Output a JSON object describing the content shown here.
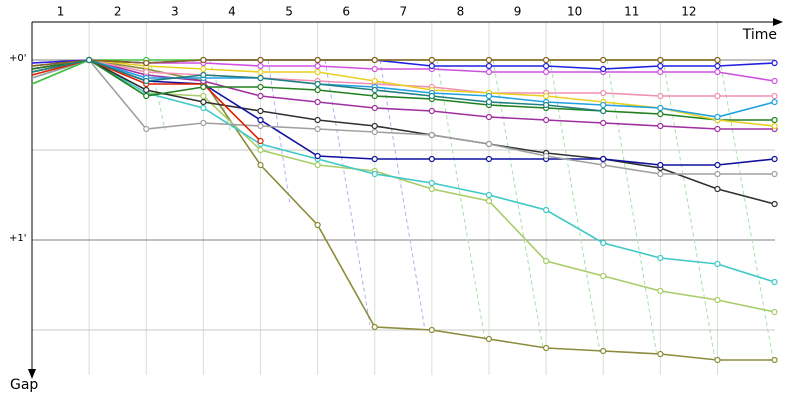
{
  "chart_data": {
    "type": "line",
    "x_label": "Time",
    "y_label": "Gap",
    "x": [
      0,
      1,
      2,
      3,
      4,
      5,
      6,
      7,
      8,
      9,
      10,
      11,
      12,
      13
    ],
    "xlim": [
      0,
      13.2
    ],
    "xticks": [
      {
        "value": 0.5,
        "label": "1"
      },
      {
        "value": 1.5,
        "label": "2"
      },
      {
        "value": 2.5,
        "label": "3"
      },
      {
        "value": 3.5,
        "label": "4"
      },
      {
        "value": 4.5,
        "label": "5"
      },
      {
        "value": 5.5,
        "label": "6"
      },
      {
        "value": 6.5,
        "label": "7"
      },
      {
        "value": 7.5,
        "label": "8"
      },
      {
        "value": 8.5,
        "label": "9"
      },
      {
        "value": 9.5,
        "label": "10"
      },
      {
        "value": 10.5,
        "label": "11"
      },
      {
        "value": 11.5,
        "label": "12"
      }
    ],
    "xgrid": [
      1,
      2,
      3,
      4,
      5,
      6,
      7,
      8,
      9,
      10,
      11,
      12
    ],
    "ylim": [
      -13,
      105
    ],
    "yticks": [
      {
        "value": 0,
        "label": "+0'"
      },
      {
        "value": 60,
        "label": "+1'"
      }
    ],
    "yminor": [
      30,
      90
    ],
    "inverted_y": true,
    "series": [
      {
        "color": "#8b8b3a",
        "values": [
          4,
          0,
          3,
          7,
          35,
          55,
          89,
          90,
          93,
          96,
          97,
          98,
          100,
          100
        ]
      },
      {
        "color": "#a8cc68",
        "values": [
          8,
          0,
          11,
          12,
          30,
          35,
          37,
          43,
          47,
          67,
          72,
          77,
          80,
          84
        ]
      },
      {
        "color": "#40c8c8",
        "values": [
          6,
          0,
          11,
          16,
          28,
          33,
          38,
          41,
          45,
          50,
          61,
          66,
          68,
          74
        ]
      },
      {
        "color": "#303030",
        "values": [
          4,
          0,
          10,
          14,
          17,
          20,
          22,
          25,
          28,
          31,
          33,
          36,
          43,
          48
        ]
      },
      {
        "color": "#1010a0",
        "values": [
          3,
          0,
          7,
          8,
          20,
          32,
          33,
          33,
          33,
          33,
          33,
          35,
          35,
          33
        ]
      },
      {
        "color": "#a0a0a0",
        "values": [
          6,
          0,
          23,
          21,
          22,
          23,
          24,
          25,
          28,
          32,
          35,
          38,
          38,
          38
        ]
      },
      {
        "color": "#e02000",
        "values": [
          5,
          0,
          8,
          8,
          27,
          null,
          null,
          null,
          null,
          null,
          null,
          null,
          null,
          null
        ]
      },
      {
        "color": "#a030a0",
        "values": [
          3,
          0,
          5,
          7,
          12,
          14,
          16,
          17,
          19,
          20,
          21,
          22,
          23,
          23
        ]
      },
      {
        "color": "#208020",
        "values": [
          3,
          0,
          12,
          9,
          9,
          10,
          12,
          13,
          15,
          16,
          17,
          18,
          20,
          20
        ]
      },
      {
        "color": "#f090b0",
        "values": [
          2,
          0,
          4,
          5,
          6,
          7,
          8,
          9,
          11,
          11,
          11,
          12,
          12,
          12
        ]
      },
      {
        "color": "#e8d020",
        "values": [
          2,
          0,
          2,
          3,
          4,
          4,
          7,
          10,
          11,
          12,
          14,
          16,
          20,
          22
        ]
      },
      {
        "color": "#20a0e0",
        "values": [
          2,
          0,
          6,
          6,
          6,
          8,
          9,
          11,
          12,
          14,
          15,
          16,
          19,
          14
        ]
      },
      {
        "color": "#d050e0",
        "values": [
          1,
          0,
          1,
          1,
          2,
          2,
          3,
          3,
          4,
          4,
          4,
          4,
          4,
          7
        ]
      },
      {
        "color": "#2020e0",
        "values": [
          1,
          0,
          1,
          0,
          0,
          0,
          0,
          2,
          2,
          2,
          3,
          2,
          2,
          1
        ]
      },
      {
        "color": "#40c040",
        "values": [
          8,
          0,
          0,
          0,
          0,
          0,
          0,
          0,
          0,
          0,
          0,
          0,
          0,
          null
        ]
      },
      {
        "color": "#906020",
        "values": [
          2,
          0,
          1,
          0,
          0,
          0,
          0,
          0,
          0,
          0,
          0,
          0,
          0,
          null
        ]
      },
      {
        "color": "#208080",
        "values": [
          4,
          0,
          7,
          5,
          6,
          8,
          10,
          12,
          14,
          15,
          17,
          null,
          null,
          null
        ]
      }
    ]
  }
}
